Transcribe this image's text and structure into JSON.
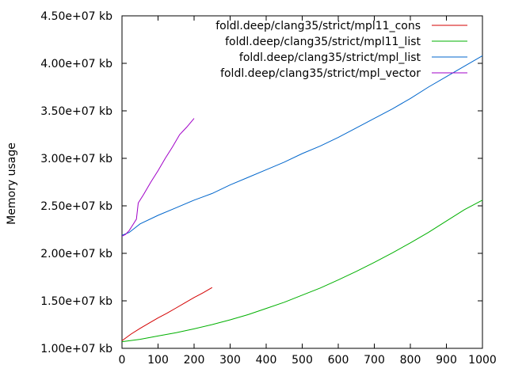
{
  "chart_data": {
    "type": "line",
    "title": "",
    "xlabel": "",
    "ylabel": "Memory usage",
    "xlim": [
      0,
      1000
    ],
    "ylim": [
      10000000,
      45000000
    ],
    "xticks": [
      0,
      100,
      200,
      300,
      400,
      500,
      600,
      700,
      800,
      900,
      1000
    ],
    "xtick_labels": [
      "0",
      "100",
      "200",
      "300",
      "400",
      "500",
      "600",
      "700",
      "800",
      "900",
      "1000"
    ],
    "yticks": [
      10000000,
      15000000,
      20000000,
      25000000,
      30000000,
      35000000,
      40000000,
      45000000
    ],
    "ytick_labels": [
      "1.00e+07 kb",
      "1.50e+07 kb",
      "2.00e+07 kb",
      "2.50e+07 kb",
      "3.00e+07 kb",
      "3.50e+07 kb",
      "4.00e+07 kb",
      "4.50e+07 kb"
    ],
    "grid": false,
    "legend_position": "top-right",
    "series": [
      {
        "name": "foldl.deep/clang35/strict/mpl11_cons",
        "color": "#d40000",
        "x": [
          0,
          25,
          50,
          75,
          100,
          125,
          150,
          175,
          200,
          225,
          250
        ],
        "y": [
          10800000,
          11500000,
          12100000,
          12650000,
          13200000,
          13700000,
          14250000,
          14800000,
          15350000,
          15850000,
          16400000
        ]
      },
      {
        "name": "foldl.deep/clang35/strict/mpl11_list",
        "color": "#00b000",
        "x": [
          0,
          50,
          100,
          150,
          200,
          250,
          300,
          350,
          400,
          450,
          500,
          550,
          600,
          650,
          700,
          750,
          800,
          850,
          900,
          950,
          1000
        ],
        "y": [
          10700000,
          10950000,
          11300000,
          11650000,
          12050000,
          12500000,
          13000000,
          13550000,
          14200000,
          14850000,
          15600000,
          16350000,
          17200000,
          18100000,
          19050000,
          20050000,
          21100000,
          22200000,
          23400000,
          24600000,
          25600000
        ]
      },
      {
        "name": "foldl.deep/clang35/strict/mpl_list",
        "color": "#0066cc",
        "x": [
          0,
          20,
          50,
          100,
          150,
          200,
          250,
          300,
          350,
          400,
          450,
          500,
          550,
          600,
          650,
          700,
          750,
          800,
          850,
          900,
          950,
          1000
        ],
        "y": [
          21900000,
          22200000,
          23100000,
          24000000,
          24800000,
          25600000,
          26300000,
          27200000,
          28000000,
          28800000,
          29600000,
          30500000,
          31300000,
          32200000,
          33200000,
          34200000,
          35200000,
          36300000,
          37500000,
          38600000,
          39700000,
          40800000
        ]
      },
      {
        "name": "foldl.deep/clang35/strict/mpl_vector",
        "color": "#a000c8",
        "x": [
          0,
          10,
          20,
          30,
          40,
          45,
          60,
          80,
          100,
          120,
          140,
          160,
          180,
          200
        ],
        "y": [
          21800000,
          22000000,
          22400000,
          23000000,
          23600000,
          25300000,
          26200000,
          27500000,
          28700000,
          30000000,
          31200000,
          32500000,
          33300000,
          34200000
        ]
      }
    ]
  }
}
